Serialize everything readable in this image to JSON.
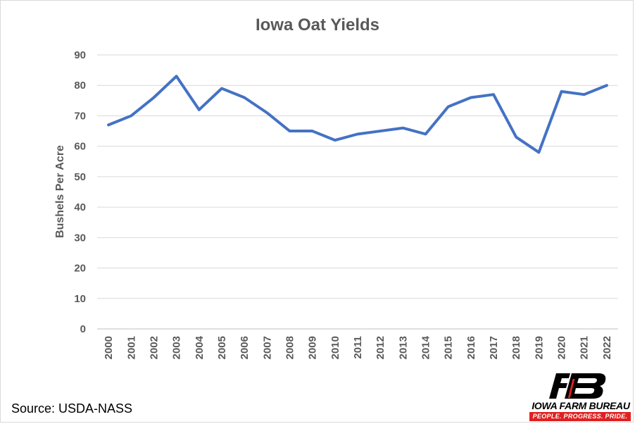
{
  "chart_data": {
    "type": "line",
    "title": "Iowa Oat Yields",
    "ylabel": "Bushels Per Acre",
    "xlabel": "",
    "ylim": [
      0,
      90
    ],
    "yticks": [
      "0",
      "10",
      "20",
      "30",
      "40",
      "50",
      "60",
      "70",
      "80",
      "90"
    ],
    "categories": [
      "2000",
      "2001",
      "2002",
      "2003",
      "2004",
      "2005",
      "2006",
      "2007",
      "2008",
      "2009",
      "2010",
      "2011",
      "2012",
      "2013",
      "2014",
      "2015",
      "2016",
      "2017",
      "2018",
      "2019",
      "2020",
      "2021",
      "2022"
    ],
    "series": [
      {
        "values": [
          67,
          70,
          76,
          83,
          72,
          79,
          76,
          71,
          65,
          65,
          62,
          64,
          65,
          66,
          64,
          73,
          76,
          77,
          63,
          58,
          78,
          77,
          80
        ],
        "color": "#4472c4"
      }
    ],
    "grid": true,
    "legend": "none"
  },
  "source": "Source: USDA-NASS",
  "logo": {
    "name": "IOWA FARM BUREAU",
    "tagline": "PEOPLE. PROGRESS. PRIDE.",
    "colors": {
      "mark": "#000000",
      "accent": "#e02020"
    }
  }
}
